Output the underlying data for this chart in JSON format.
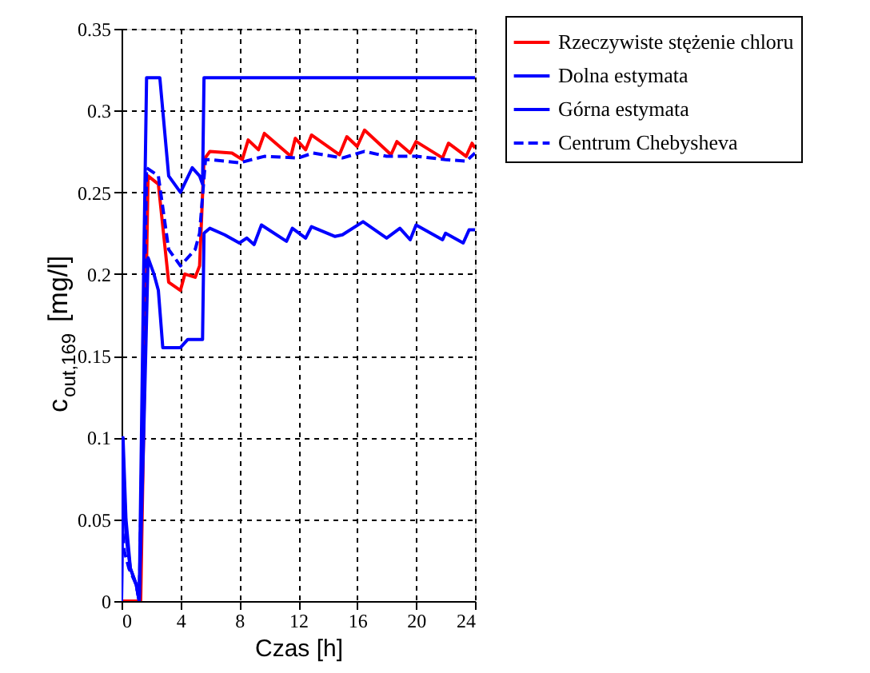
{
  "chart_data": {
    "type": "line",
    "xlabel": "Czas [h]",
    "ylabel": "c$_{out,169}$[mg/l]",
    "xlim": [
      0,
      24
    ],
    "xticks": [
      0,
      4,
      8,
      12,
      16,
      20,
      24
    ],
    "ylim": [
      0,
      0.35
    ],
    "yticks": [
      {
        "value": 0,
        "label": "0"
      },
      0.05,
      {
        "value": 0.1,
        "label": "0.1"
      },
      0.15,
      {
        "value": 0.2,
        "label": "0.2"
      },
      0.25,
      {
        "value": 0.3,
        "label": "0.3"
      },
      0.35
    ],
    "grid": true,
    "legend": "top right",
    "series": [
      {
        "name": "Rzeczywiste stężenie chloru",
        "color": "#ff0000",
        "line_style": "solid",
        "x": [
          0,
          1.3,
          1.8,
          2.5,
          3.2,
          4,
          4.3,
          5,
          5.3,
          5.6,
          6,
          7.5,
          8.2,
          8.6,
          9.3,
          9.7,
          11.5,
          11.8,
          12.5,
          12.9,
          14.8,
          15.3,
          16,
          16.5,
          18.3,
          18.7,
          19.6,
          20,
          21.8,
          22.2,
          23.4,
          23.8,
          24
        ],
        "values": [
          0,
          0,
          0.26,
          0.255,
          0.195,
          0.19,
          0.2,
          0.198,
          0.205,
          0.27,
          0.275,
          0.274,
          0.27,
          0.282,
          0.276,
          0.286,
          0.272,
          0.283,
          0.276,
          0.285,
          0.273,
          0.284,
          0.278,
          0.288,
          0.273,
          0.281,
          0.274,
          0.281,
          0.271,
          0.28,
          0.272,
          0.28,
          0.277
        ]
      },
      {
        "name": "Dolna estymata",
        "color": "#0000ff",
        "line_style": "solid",
        "x": [
          0,
          0.1,
          0.3,
          0.6,
          1,
          1.2,
          1.5,
          1.8,
          2.2,
          2.5,
          2.8,
          4,
          4.5,
          5.5,
          5.6,
          6,
          7,
          8,
          8.5,
          9,
          9.5,
          11.2,
          11.6,
          12.5,
          12.9,
          14.5,
          15,
          16.4,
          18,
          18.9,
          19.6,
          20,
          21.8,
          22,
          23.2,
          23.6,
          24
        ],
        "values": [
          0,
          0.09,
          0.04,
          0.02,
          0.01,
          0,
          0.1,
          0.21,
          0.2,
          0.19,
          0.155,
          0.155,
          0.16,
          0.16,
          0.225,
          0.228,
          0.224,
          0.219,
          0.222,
          0.218,
          0.23,
          0.22,
          0.228,
          0.222,
          0.229,
          0.223,
          0.224,
          0.232,
          0.222,
          0.228,
          0.221,
          0.23,
          0.221,
          0.225,
          0.219,
          0.227,
          0.227
        ]
      },
      {
        "name": "Górna estymata",
        "color": "#0000ff",
        "line_style": "solid",
        "x": [
          0,
          0.1,
          0.3,
          0.6,
          1,
          1.2,
          1.5,
          1.7,
          2.6,
          3.2,
          4,
          4.8,
          5.3,
          5.5,
          5.6,
          24
        ],
        "values": [
          0,
          0.1,
          0.05,
          0.02,
          0.01,
          0,
          0.2,
          0.32,
          0.32,
          0.26,
          0.25,
          0.265,
          0.26,
          0.255,
          0.32,
          0.32
        ]
      },
      {
        "name": "Centrum Chebysheva",
        "color": "#0000ff",
        "line_style": "dashed",
        "x": [
          0,
          0.2,
          0.5,
          1,
          1.2,
          1.5,
          1.7,
          2.5,
          3.2,
          4,
          5,
          5.3,
          5.7,
          6,
          8,
          9.7,
          12,
          13,
          15,
          16.5,
          18,
          20,
          22,
          23.4,
          24
        ],
        "values": [
          0.05,
          0.03,
          0.02,
          0.01,
          0,
          0.15,
          0.265,
          0.26,
          0.215,
          0.205,
          0.215,
          0.225,
          0.27,
          0.27,
          0.268,
          0.272,
          0.271,
          0.274,
          0.271,
          0.275,
          0.272,
          0.272,
          0.27,
          0.269,
          0.274
        ]
      }
    ]
  }
}
